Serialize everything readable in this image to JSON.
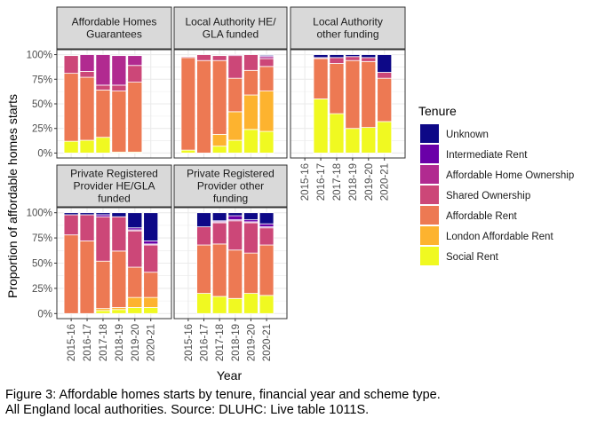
{
  "chart_data": {
    "type": "bar",
    "stacked": true,
    "ylabel": "Proportion of affordable homes starts",
    "xlabel": "Year",
    "yticks": [
      "0%",
      "25%",
      "50%",
      "75%",
      "100%"
    ],
    "ylim": [
      0,
      1
    ],
    "categories": [
      "2015-16",
      "2016-17",
      "2017-18",
      "2018-19",
      "2019-20",
      "2020-21"
    ],
    "legend": {
      "title": "Tenure",
      "position": "right",
      "items": [
        {
          "name": "Unknown",
          "color": "#0d0887"
        },
        {
          "name": "Intermediate Rent",
          "color": "#6a00a8"
        },
        {
          "name": "Affordable Home Ownership",
          "color": "#b12a90"
        },
        {
          "name": "Shared Ownership",
          "color": "#cc4778"
        },
        {
          "name": "Affordable Rent",
          "color": "#ed7953"
        },
        {
          "name": "London Affordable Rent",
          "color": "#fdb32f"
        },
        {
          "name": "Social Rent",
          "color": "#f0f921"
        }
      ]
    },
    "stack_order": [
      "Social Rent",
      "London Affordable Rent",
      "Affordable Rent",
      "Shared Ownership",
      "Affordable Home Ownership",
      "Intermediate Rent",
      "Unknown"
    ],
    "panels": [
      {
        "title": [
          "Affordable Homes",
          "Guarantees"
        ],
        "data": [
          [
            0.12,
            0,
            0.69,
            0.18,
            0,
            0,
            0
          ],
          [
            0.13,
            0,
            0.64,
            0.06,
            0.17,
            0,
            0
          ],
          [
            0.16,
            0,
            0.48,
            0.05,
            0.31,
            0,
            0
          ],
          [
            0.01,
            0,
            0.62,
            0.06,
            0.3,
            0,
            0
          ],
          [
            0.01,
            0,
            0.71,
            0.17,
            0.1,
            0,
            0
          ],
          null
        ]
      },
      {
        "title": [
          "Local Authority HE/",
          "GLA funded"
        ],
        "data": [
          [
            0.03,
            0,
            0.94,
            0.01,
            0,
            0,
            0
          ],
          [
            0,
            0,
            0.94,
            0.06,
            0,
            0,
            0
          ],
          [
            0.07,
            0.12,
            0.75,
            0.05,
            0,
            0,
            0
          ],
          [
            0.13,
            0.29,
            0.34,
            0.23,
            0.01,
            0,
            0
          ],
          [
            0.24,
            0.35,
            0.25,
            0.16,
            0,
            0,
            0
          ],
          [
            0.22,
            0.41,
            0.25,
            0.08,
            0.02,
            0.01,
            0.01
          ]
        ]
      },
      {
        "title": [
          "Local Authority",
          "other funding"
        ],
        "data": [
          null,
          [
            0.55,
            0,
            0.41,
            0.01,
            0,
            0,
            0.03
          ],
          [
            0.4,
            0,
            0.51,
            0.06,
            0,
            0,
            0.03
          ],
          [
            0.25,
            0,
            0.69,
            0.04,
            0,
            0,
            0.02
          ],
          [
            0.26,
            0,
            0.67,
            0.04,
            0,
            0,
            0.03
          ],
          [
            0.32,
            0,
            0.44,
            0.06,
            0,
            0,
            0.18
          ]
        ]
      },
      {
        "title": [
          "Private Registered",
          "Provider HE/GLA",
          "funded"
        ],
        "data": [
          [
            0,
            0,
            0.78,
            0.2,
            0,
            0,
            0.02
          ],
          [
            0,
            0,
            0.72,
            0.26,
            0,
            0,
            0.02
          ],
          [
            0.03,
            0.02,
            0.47,
            0.44,
            0,
            0.02,
            0.02
          ],
          [
            0.04,
            0.02,
            0.56,
            0.34,
            0,
            0,
            0.04
          ],
          [
            0.06,
            0.1,
            0.3,
            0.36,
            0.01,
            0.02,
            0.15
          ],
          [
            0.06,
            0.1,
            0.25,
            0.27,
            0.01,
            0.03,
            0.28
          ]
        ]
      },
      {
        "title": [
          "Private Registered",
          "Provider other",
          "funding"
        ],
        "data": [
          null,
          [
            0.2,
            0,
            0.48,
            0.18,
            0,
            0,
            0.14
          ],
          [
            0.17,
            0,
            0.52,
            0.21,
            0.01,
            0.01,
            0.08
          ],
          [
            0.15,
            0,
            0.48,
            0.29,
            0.01,
            0.04,
            0.03
          ],
          [
            0.2,
            0,
            0.4,
            0.3,
            0.01,
            0.02,
            0.07
          ],
          [
            0.18,
            0,
            0.5,
            0.17,
            0.01,
            0.03,
            0.11
          ]
        ]
      }
    ]
  },
  "caption": {
    "line1": "Figure 3: Affordable homes starts by tenure, financial year and scheme type.",
    "line2": "All England local authorities. Source: DLUHC: Live table 1011S."
  }
}
